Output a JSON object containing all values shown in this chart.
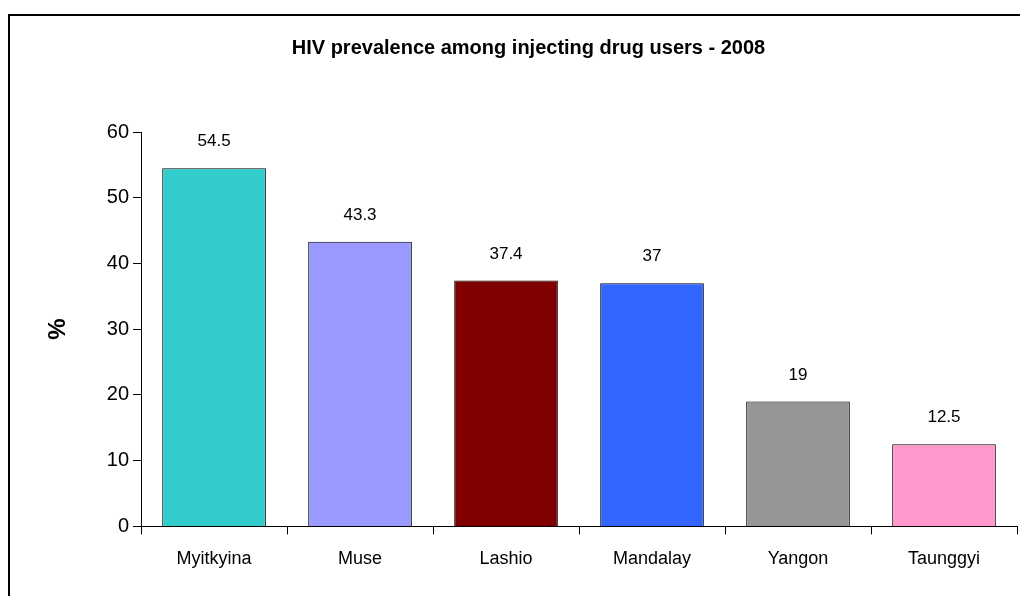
{
  "chart_data": {
    "type": "bar",
    "title": "HIV prevalence among injecting drug users - 2008",
    "ylabel": "%",
    "categories": [
      "Myitkyina",
      "Muse",
      "Lashio",
      "Mandalay",
      "Yangon",
      "Taunggyi"
    ],
    "values": [
      54.5,
      43.3,
      37.4,
      37,
      19,
      12.5
    ],
    "colors": [
      "#33cccc",
      "#9999ff",
      "#800000",
      "#3366ff",
      "#969696",
      "#ff99cc"
    ],
    "ylim": [
      0,
      60
    ],
    "yticks": [
      0,
      10,
      20,
      30,
      40,
      50,
      60
    ],
    "grid": false,
    "legend": false,
    "data_labels": true
  }
}
